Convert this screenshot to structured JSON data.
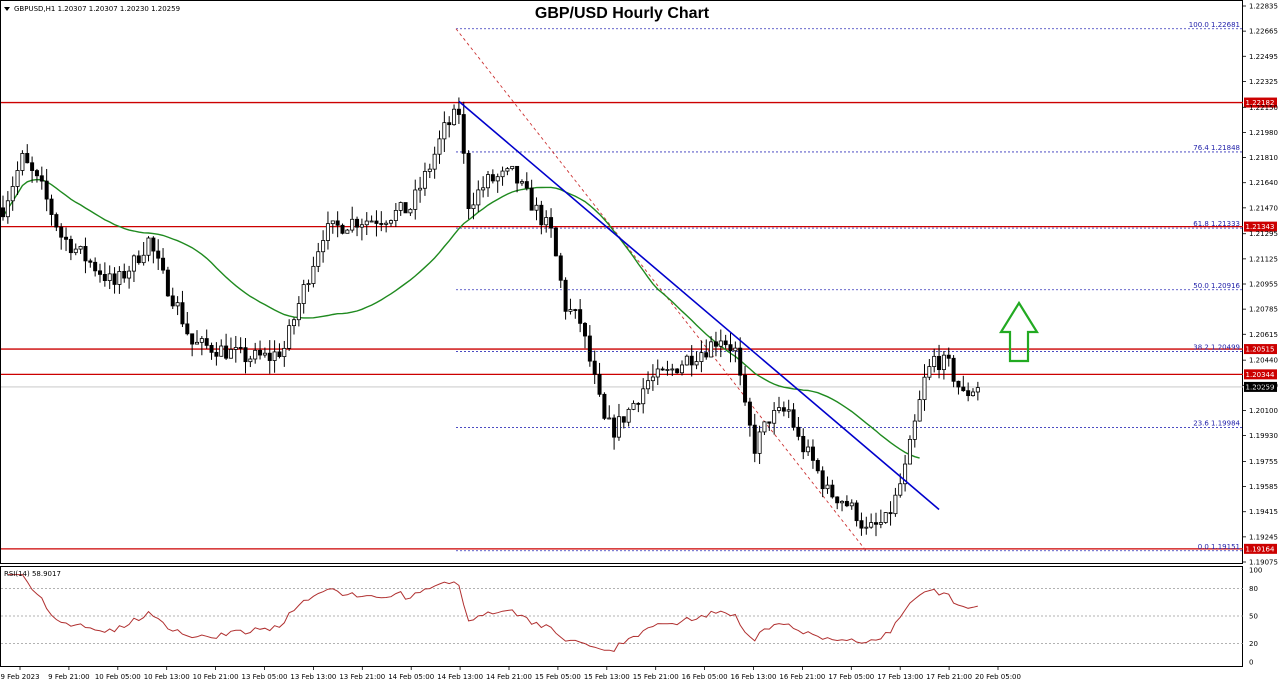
{
  "header": {
    "symbol_info": "GBPUSD,H1  1.20307 1.20307 1.20230 1.20259",
    "title": "GBP/USD Hourly Chart"
  },
  "rsi_panel": {
    "label": "RSI(14) 58.9017",
    "scale_labels": [
      "100",
      "80",
      "50",
      "20",
      "0"
    ]
  },
  "chart_data": [
    {
      "type": "candlestick",
      "title": "GBP/USD Hourly Chart",
      "symbol": "GBPUSD",
      "timeframe": "H1",
      "last_ohlc": {
        "open": 1.20307,
        "high": 1.20307,
        "low": 1.2023,
        "close": 1.20259
      },
      "ylim": [
        1.19075,
        1.22835
      ],
      "y_ticks": [
        1.22835,
        1.22665,
        1.22495,
        1.22325,
        1.2215,
        1.2198,
        1.2181,
        1.2164,
        1.2147,
        1.21295,
        1.21125,
        1.20955,
        1.20785,
        1.20615,
        1.2044,
        1.2027,
        1.201,
        1.1993,
        1.19755,
        1.19585,
        1.19415,
        1.19245,
        1.19075
      ],
      "x_tick_labels": [
        "9 Feb 2023",
        "9 Feb 21:00",
        "10 Feb 05:00",
        "10 Feb 13:00",
        "10 Feb 21:00",
        "13 Feb 05:00",
        "13 Feb 13:00",
        "13 Feb 21:00",
        "14 Feb 05:00",
        "14 Feb 13:00",
        "14 Feb 21:00",
        "15 Feb 05:00",
        "15 Feb 13:00",
        "15 Feb 21:00",
        "16 Feb 05:00",
        "16 Feb 13:00",
        "16 Feb 21:00",
        "17 Feb 05:00",
        "17 Feb 13:00",
        "17 Feb 21:00",
        "20 Feb 05:00"
      ],
      "current_price": {
        "value": 1.20259,
        "label": "1.20259"
      },
      "horizontal_levels": [
        {
          "value": 1.22182,
          "label": "1.22182",
          "color": "#cc0000"
        },
        {
          "value": 1.21343,
          "label": "1.21343",
          "color": "#cc0000"
        },
        {
          "value": 1.20515,
          "label": "1.20515",
          "color": "#cc0000"
        },
        {
          "value": 1.20344,
          "label": "1.20344",
          "color": "#cc0000"
        },
        {
          "value": 1.19164,
          "label": "1.19164",
          "color": "#cc0000"
        }
      ],
      "fibonacci": {
        "high": 1.22681,
        "low": 1.19151,
        "levels": [
          {
            "label": "100.0 1.22681",
            "value": 1.22681
          },
          {
            "label": "76.4 1.21848",
            "value": 1.21848
          },
          {
            "label": "61.8 1.21333",
            "value": 1.21333
          },
          {
            "label": "50.0 1.20916",
            "value": 1.20916
          },
          {
            "label": "38.2 1.20499",
            "value": 1.20499
          },
          {
            "label": "23.6 1.19984",
            "value": 1.19984
          },
          {
            "label": "0.0 1.19151",
            "value": 1.19151
          }
        ]
      },
      "trendline": {
        "from": {
          "bar": 94,
          "price": 1.2219
        },
        "to": {
          "bar": 193,
          "price": 1.1943
        },
        "color": "#0000cc"
      },
      "moving_average": {
        "color": "#1f8a1f"
      },
      "annotation": {
        "type": "up-arrow",
        "color": "#22aa22"
      },
      "colors": {
        "up": "#ffffff",
        "down": "#000000",
        "wick": "#000000"
      }
    },
    {
      "type": "line",
      "name": "RSI(14)",
      "latest": 58.9017,
      "ylim": [
        0,
        100
      ],
      "levels": [
        80,
        50,
        20
      ],
      "color": "#b03030"
    }
  ]
}
